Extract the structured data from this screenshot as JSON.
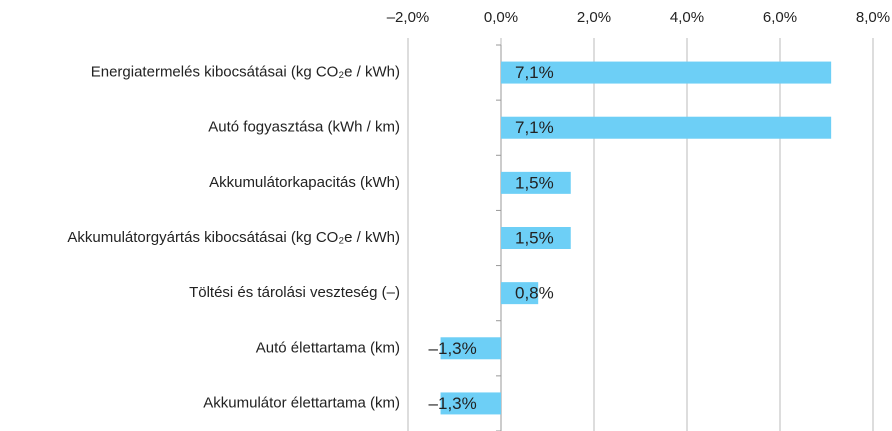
{
  "chart_data": {
    "type": "bar",
    "orientation": "horizontal",
    "categories": [
      "Energiatermelés kibocsátásai (kg CO₂e / kWh)",
      "Autó fogyasztása (kWh / km)",
      "Akkumulátorkapacitás (kWh)",
      "Akkumulátorgyártás kibocsátásai (kg CO₂e / kWh)",
      "Töltési és tárolási veszteség (–)",
      "Autó élettartama (km)",
      "Akkumulátor élettartama (km)"
    ],
    "values": [
      7.1,
      7.1,
      1.5,
      1.5,
      0.8,
      -1.3,
      -1.3
    ],
    "value_labels": [
      "7,1%",
      "7,1%",
      "1,5%",
      "1,5%",
      "0,8%",
      "–1,3%",
      "–1,3%"
    ],
    "color": "#6dcff6",
    "xlim": [
      -2,
      8
    ],
    "xticks": [
      {
        "value": -2,
        "label": "–2,0%"
      },
      {
        "value": 0,
        "label": "0,0%"
      },
      {
        "value": 2,
        "label": "2,0%"
      },
      {
        "value": 4,
        "label": "4,0%"
      },
      {
        "value": 6,
        "label": "6,0%"
      },
      {
        "value": 8,
        "label": "8,0%"
      }
    ],
    "grid": true
  }
}
